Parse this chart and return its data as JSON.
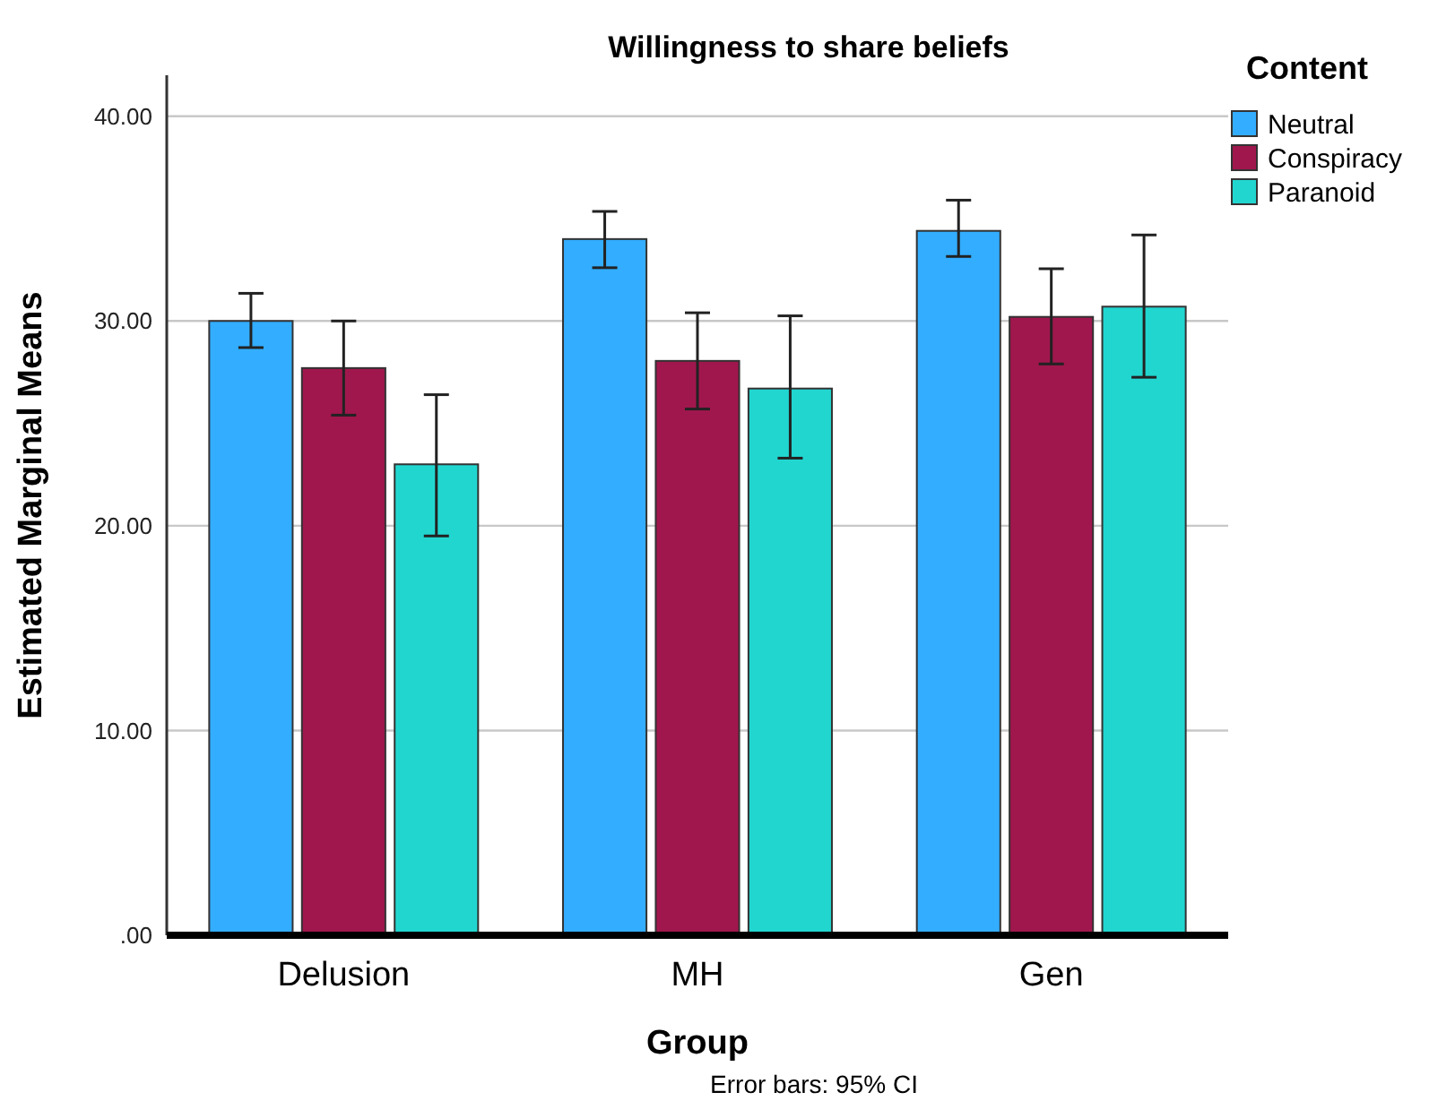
{
  "chart_data": {
    "type": "bar",
    "title": "Willingness to share beliefs",
    "xlabel": "Group",
    "ylabel": "Estimated Marginal Means",
    "legend_title": "Content",
    "annotations": [
      "Error bars: 95% CI"
    ],
    "categories": [
      "Delusion",
      "MH",
      "Gen"
    ],
    "series": [
      {
        "name": "Neutral",
        "color": "#33adff",
        "values": [
          30.0,
          34.0,
          34.4
        ],
        "errors": [
          [
            28.7,
            31.35
          ],
          [
            32.6,
            35.35
          ],
          [
            33.15,
            35.9
          ]
        ]
      },
      {
        "name": "Conspiracy",
        "color": "#a0174d",
        "values": [
          27.7,
          28.05,
          30.2
        ],
        "errors": [
          [
            25.4,
            30.0
          ],
          [
            25.7,
            30.4
          ],
          [
            27.9,
            32.55
          ]
        ]
      },
      {
        "name": "Paranoid",
        "color": "#22d6d0",
        "values": [
          23.0,
          26.7,
          30.7
        ],
        "errors": [
          [
            19.5,
            26.4
          ],
          [
            23.3,
            30.25
          ],
          [
            27.25,
            34.2
          ]
        ]
      }
    ],
    "ylim": [
      0,
      42
    ],
    "yticks": [
      {
        "value": 0,
        "label": ".00"
      },
      {
        "value": 10,
        "label": "10.00"
      },
      {
        "value": 20,
        "label": "20.00"
      },
      {
        "value": 30,
        "label": "30.00"
      },
      {
        "value": 40,
        "label": "40.00"
      }
    ],
    "grid": "y",
    "legend": "top right"
  }
}
